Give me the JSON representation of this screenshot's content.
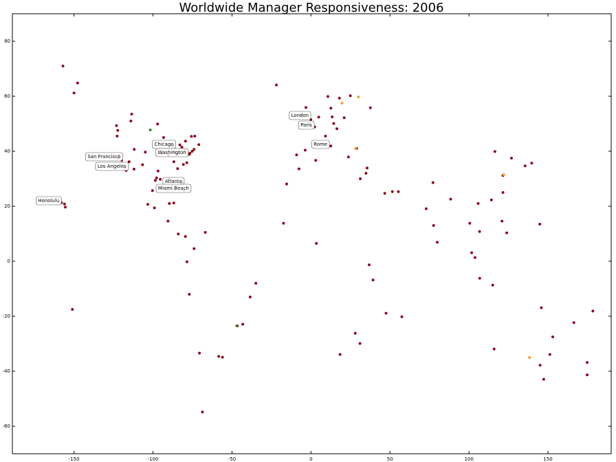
{
  "chart_data": {
    "type": "scatter",
    "title": "Worldwide Manager Responsiveness: 2006",
    "xlim": [
      -189,
      190
    ],
    "ylim": [
      -70,
      90
    ],
    "xticks": [
      -150,
      -100,
      -50,
      0,
      50,
      100,
      150
    ],
    "yticks": [
      -60,
      -40,
      -20,
      0,
      20,
      40,
      60,
      80
    ],
    "grid": false,
    "series": [
      {
        "color": "#8b0a1e",
        "x": [
          -122,
          -118,
          -117,
          -122.3,
          -122.7,
          -121.5,
          -119.8,
          -115.1,
          -112,
          -111.9,
          -104.9,
          -96.8,
          -95.4,
          -98.5,
          -97.7,
          -90,
          -84.4,
          -80.2,
          -81.4,
          -82.5,
          -87.6,
          -83,
          -93.3,
          -90.2,
          -94.6,
          -86.8,
          -77,
          -74,
          -71,
          -75.2,
          -76.6,
          -80,
          -81.7,
          -84.5,
          -86.2,
          -78.6,
          -80.8,
          -79.4,
          -73.6,
          -75.7,
          -123.1,
          -114,
          -113.5,
          -97.1,
          -106.6,
          -99.1,
          -103.3,
          -100.3,
          -86.8,
          -89.6,
          -90.5,
          -84,
          -79.5,
          -74,
          -66.9,
          -77,
          -78.5,
          -70.6,
          -58.4,
          -56,
          -43.2,
          -46.6,
          -38.5,
          -34.9,
          -68.7,
          -157.9,
          -156,
          -155.5,
          -150,
          -147.7,
          -157,
          -151,
          -0.1,
          2.35,
          -3.7,
          -9.1,
          12.5,
          9.2,
          13.4,
          4.9,
          -6.3,
          -3.2,
          10.7,
          18,
          12.6,
          24.9,
          37.6,
          21,
          14.4,
          16.4,
          23.7,
          28.9,
          34.8,
          35.5,
          31.2,
          -7.6,
          3,
          -21.9,
          -15.4,
          -17.4,
          3.4,
          36.8,
          39.3,
          28,
          18.4,
          31,
          47.5,
          57.5,
          55.3,
          51.5,
          46.7,
          72.9,
          77.2,
          77.6,
          88.4,
          79.9,
          100.5,
          103.8,
          101.7,
          106.7,
          105.8,
          114.2,
          121.5,
          116.4,
          126.9,
          139.7,
          135.5,
          121.5,
          120.9,
          123.9,
          115,
          106.8,
          144.8,
          151.2,
          153,
          145,
          115.9,
          145.8,
          174.8,
          174.8,
          178.4,
          166.4,
          147.3
        ],
        "y": [
          37.5,
          34,
          33,
          47.6,
          45.5,
          38.5,
          36.7,
          36.2,
          33.5,
          40.7,
          39.7,
          32.8,
          29.8,
          29.4,
          30.3,
          29.9,
          33.7,
          25.8,
          28.5,
          27.9,
          41.9,
          42.3,
          45,
          38.6,
          39.1,
          36.2,
          38.9,
          40.7,
          42.4,
          40,
          39.3,
          40.4,
          41.5,
          39.1,
          39.8,
          35.8,
          35.2,
          43.7,
          45.5,
          45.4,
          49.3,
          51,
          53.5,
          49.9,
          35.1,
          19.4,
          20.7,
          25.7,
          21.2,
          21,
          14.6,
          9.9,
          9,
          4.6,
          10.5,
          -12,
          -0.2,
          -33.4,
          -34.6,
          -34.9,
          -22.9,
          -23.5,
          -13,
          -8,
          -54.8,
          21.3,
          20.8,
          19.7,
          61.2,
          64.8,
          71,
          -17.5,
          51.5,
          48.85,
          40.4,
          38.7,
          41.9,
          45.5,
          52.5,
          52.4,
          53.3,
          55.9,
          59.9,
          59.3,
          55.7,
          60.2,
          55.8,
          52.2,
          50.1,
          48.2,
          37.9,
          41,
          32,
          33.9,
          30,
          33.6,
          36.7,
          64.1,
          28.1,
          13.8,
          6.5,
          -1.3,
          -6.8,
          -26.2,
          -33.9,
          -29.9,
          -18.9,
          -20.2,
          25.3,
          25.3,
          24.7,
          19.1,
          28.6,
          13,
          22.6,
          6.9,
          13.8,
          1.35,
          3.1,
          10.8,
          21,
          22.3,
          31.2,
          39.9,
          37.5,
          35.7,
          34.7,
          25,
          14.6,
          10.3,
          -8.7,
          -6.2,
          13.5,
          -33.9,
          -27.5,
          -37.8,
          -31.9,
          -16.9,
          -36.8,
          -41.3,
          -18.1,
          -22.3,
          -42.9
        ]
      },
      {
        "color": "#f0a030",
        "x": [
          30,
          19.6,
          28.3,
          122,
          138.3
        ],
        "y": [
          59.75,
          57.5,
          41,
          31.5,
          -35
        ]
      },
      {
        "color": "#2a8a3a",
        "x": [
          -47,
          -101.7
        ],
        "y": [
          -23.5,
          47.75
        ]
      }
    ],
    "annotations": [
      {
        "text": "Honolulu",
        "x": -166,
        "y": 22
      },
      {
        "text": "San Francisco",
        "x": -131,
        "y": 38
      },
      {
        "text": "Los Angeles",
        "x": -126,
        "y": 34.5
      },
      {
        "text": "Chicago",
        "x": -93,
        "y": 42.5
      },
      {
        "text": "Washington",
        "x": -88,
        "y": 39.5
      },
      {
        "text": "Atlanta",
        "x": -87,
        "y": 29
      },
      {
        "text": "Miami Beach",
        "x": -87,
        "y": 26.5
      },
      {
        "text": "London",
        "x": -7,
        "y": 53
      },
      {
        "text": "Paris",
        "x": -3,
        "y": 49.5
      },
      {
        "text": "Rome",
        "x": 6,
        "y": 42.5
      }
    ]
  }
}
